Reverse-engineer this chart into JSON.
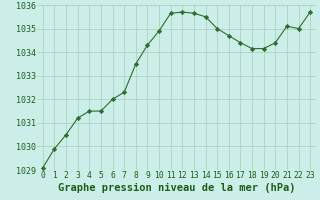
{
  "x": [
    0,
    1,
    2,
    3,
    4,
    5,
    6,
    7,
    8,
    9,
    10,
    11,
    12,
    13,
    14,
    15,
    16,
    17,
    18,
    19,
    20,
    21,
    22,
    23
  ],
  "y": [
    1029.1,
    1029.9,
    1030.5,
    1031.2,
    1031.5,
    1031.5,
    1032.0,
    1032.3,
    1033.5,
    1034.3,
    1034.9,
    1035.65,
    1035.7,
    1035.65,
    1035.5,
    1035.0,
    1034.7,
    1034.4,
    1034.15,
    1034.15,
    1034.4,
    1035.1,
    1035.0,
    1035.7
  ],
  "line_color": "#2d6e2d",
  "marker": "D",
  "marker_size": 2.2,
  "bg_color": "#cceee8",
  "grid_color": "#aaccbb",
  "xlabel": "Graphe pression niveau de la mer (hPa)",
  "xlabel_fontsize": 7.5,
  "xlabel_color": "#1a5e1a",
  "ylim": [
    1029,
    1036
  ],
  "xlim": [
    -0.5,
    23.5
  ],
  "yticks": [
    1029,
    1030,
    1031,
    1032,
    1033,
    1034,
    1035,
    1036
  ],
  "xtick_labels": [
    "0",
    "1",
    "2",
    "3",
    "4",
    "5",
    "6",
    "7",
    "8",
    "9",
    "10",
    "11",
    "12",
    "13",
    "14",
    "15",
    "16",
    "17",
    "18",
    "19",
    "20",
    "21",
    "22",
    "23"
  ],
  "tick_fontsize": 5.8,
  "tick_color": "#1a5e1a",
  "ytick_fontsize": 6.0
}
